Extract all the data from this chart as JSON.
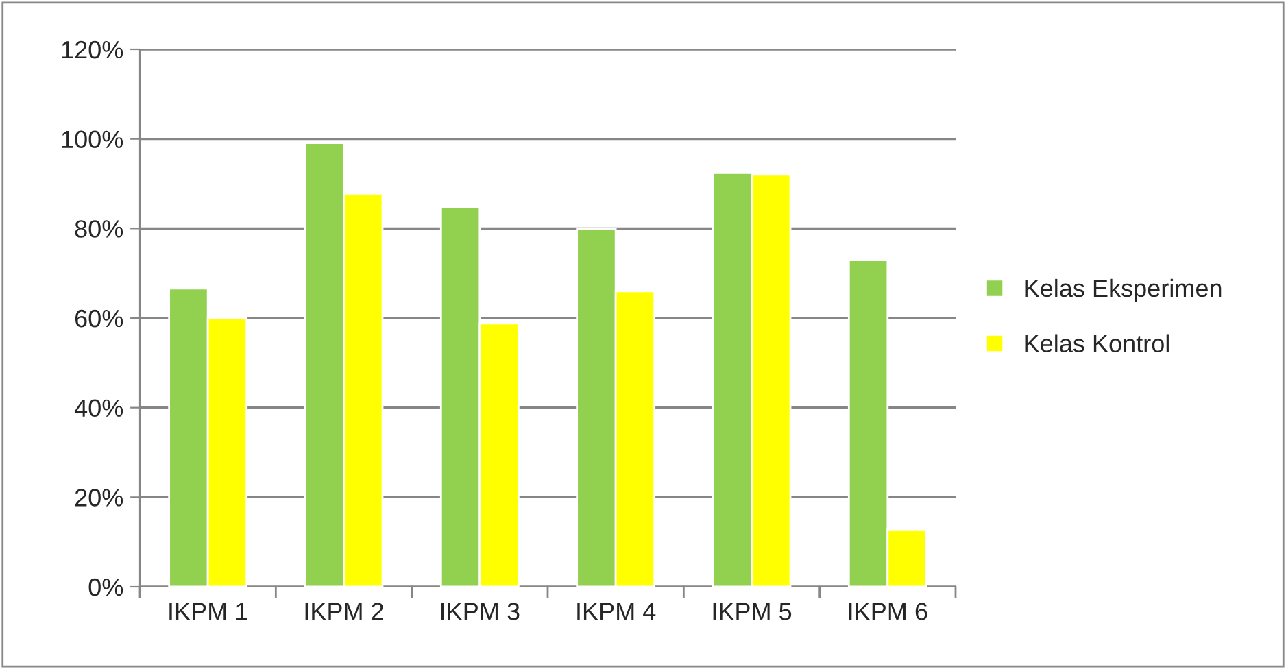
{
  "chart_data": {
    "type": "bar",
    "categories": [
      "IKPM 1",
      "IKPM 2",
      "IKPM 3",
      "IKPM 4",
      "IKPM 5",
      "IKPM 6"
    ],
    "series": [
      {
        "name": "Kelas Eksperimen",
        "color": "#92d050",
        "values": [
          66.6,
          99.1,
          84.8,
          79.9,
          92.4,
          72.9
        ]
      },
      {
        "name": "Kelas Kontrol",
        "color": "#ffff00",
        "values": [
          60,
          87.8,
          58.8,
          66,
          92,
          12.8
        ]
      }
    ],
    "ylim": [
      0,
      120
    ],
    "yticks": [
      {
        "value": 0,
        "label": "0%"
      },
      {
        "value": 20,
        "label": "20%"
      },
      {
        "value": 40,
        "label": "40%"
      },
      {
        "value": 60,
        "label": "60%"
      },
      {
        "value": 80,
        "label": "80%"
      },
      {
        "value": 100,
        "label": "100%"
      },
      {
        "value": 120,
        "label": "120%"
      }
    ],
    "grid": "y",
    "legend": "right"
  }
}
